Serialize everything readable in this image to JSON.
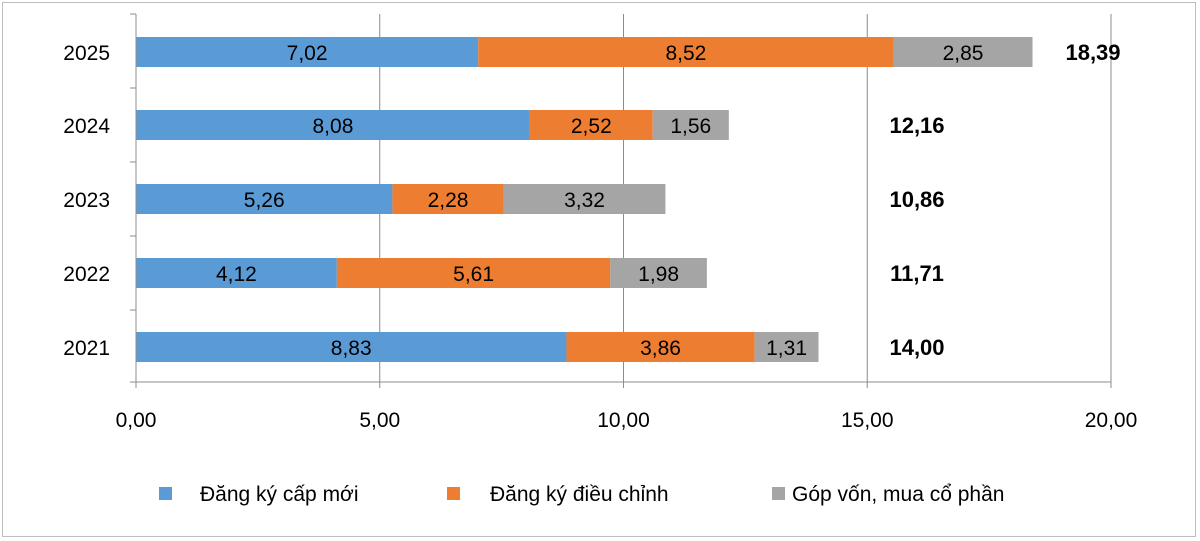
{
  "chart_data": {
    "type": "bar",
    "orientation": "horizontal",
    "stacked": true,
    "categories": [
      "2025",
      "2024",
      "2023",
      "2022",
      "2021"
    ],
    "series": [
      {
        "name": "Đăng ký cấp mới",
        "color": "#5b9bd5",
        "values": [
          7.02,
          8.08,
          5.26,
          4.12,
          8.83
        ],
        "labels": [
          "7,02",
          "8,08",
          "5,26",
          "4,12",
          "8,83"
        ]
      },
      {
        "name": "Đăng ký điều chỉnh",
        "color": "#ed7d31",
        "values": [
          8.52,
          2.52,
          2.28,
          5.61,
          3.86
        ],
        "labels": [
          "8,52",
          "2,52",
          "2,28",
          "5,61",
          "3,86"
        ]
      },
      {
        "name": "Góp vốn, mua cổ phần",
        "color": "#a5a5a5",
        "values": [
          2.85,
          1.56,
          3.32,
          1.98,
          1.31
        ],
        "labels": [
          "2,85",
          "1,56",
          "3,32",
          "1,98",
          "1,31"
        ]
      }
    ],
    "totals": [
      "18,39",
      "12,16",
      "10,86",
      "11,71",
      "14,00"
    ],
    "xlim": [
      0,
      20
    ],
    "xticks": [
      0,
      5,
      10,
      15,
      20
    ],
    "xtick_labels": [
      "0,00",
      "5,00",
      "10,00",
      "15,00",
      "20,00"
    ],
    "grid": "vertical",
    "legend_position": "bottom"
  }
}
